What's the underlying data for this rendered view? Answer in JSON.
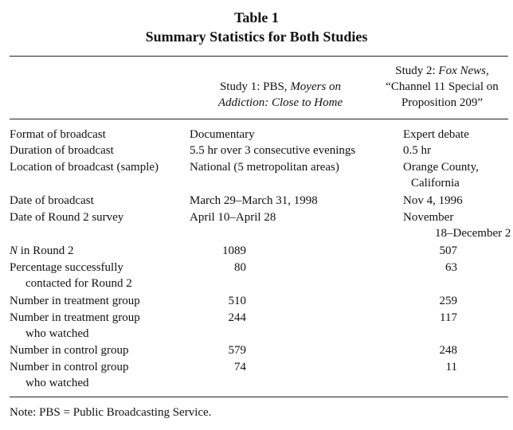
{
  "table": {
    "title_line1": "Table 1",
    "title_line2": "Summary Statistics for Both Studies",
    "col1_header": {
      "line1_plain": "Study 1: PBS, ",
      "line1_italic": "Moyers on",
      "line2_italic": "Addiction: Close to Home"
    },
    "col2_header": {
      "line1_plain": "Study 2: ",
      "line1_italic": "Fox News,",
      "line2": "“Channel 11 Special on",
      "line3": "Proposition 209”"
    },
    "rows": {
      "format": {
        "label": "Format of broadcast",
        "study1": "Documentary",
        "study2": "Expert debate"
      },
      "duration": {
        "label": "Duration of broadcast",
        "study1": "5.5 hr over 3 consecutive evenings",
        "study2": "0.5 hr"
      },
      "location": {
        "label": "Location of broadcast (sample)",
        "study1": "National (5 metropolitan areas)",
        "study2_line1": "Orange County,",
        "study2_line2": "California"
      },
      "date_broadcast": {
        "label": "Date of broadcast",
        "study1": "March 29–March 31, 1998",
        "study2": "Nov 4, 1996"
      },
      "date_round2": {
        "label": "Date of Round 2 survey",
        "study1": "April 10–April 28",
        "study2_line1": "November",
        "study2_line2": "18–December 2"
      },
      "n_round2": {
        "label_italic": "N",
        "label_rest": " in Round 2",
        "study1": "1089",
        "study2": "507"
      },
      "pct_contacted": {
        "label_line1": "Percentage successfully",
        "label_line2": "contacted for Round 2",
        "study1": "80",
        "study2": "63"
      },
      "n_treatment": {
        "label": "Number in treatment group",
        "study1": "510",
        "study2": "259"
      },
      "n_treatment_watched": {
        "label_line1": "Number in treatment group",
        "label_line2": "who watched",
        "study1": "244",
        "study2": "117"
      },
      "n_control": {
        "label": "Number in control group",
        "study1": "579",
        "study2": "248"
      },
      "n_control_watched": {
        "label_line1": "Number in control group",
        "label_line2": "who watched",
        "study1": "74",
        "study2": "11"
      }
    },
    "note": "Note: PBS = Public Broadcasting Service."
  }
}
